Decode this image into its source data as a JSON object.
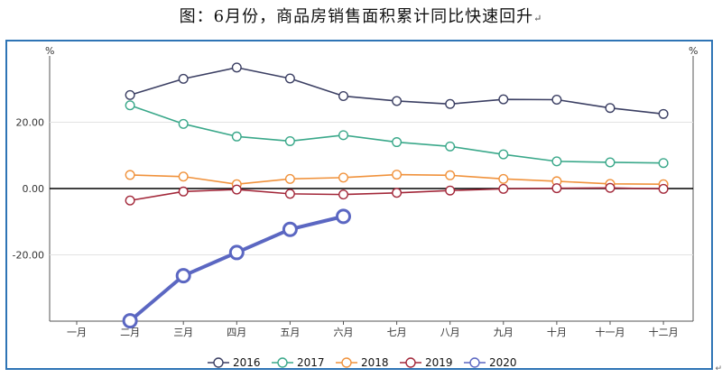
{
  "chart_data": {
    "type": "line",
    "title": "图：6月份，商品房销售面积累计同比快速回升",
    "title_suffix": "↵",
    "ylabel_left": "%",
    "ylabel_right": "%",
    "categories": [
      "一月",
      "二月",
      "三月",
      "四月",
      "五月",
      "六月",
      "七月",
      "八月",
      "九月",
      "十月",
      "十一月",
      "十二月"
    ],
    "yticks": [
      20,
      0,
      -20
    ],
    "ytick_labels": [
      "20.00",
      "0.00",
      "-20.00"
    ],
    "ylim": [
      -40,
      40
    ],
    "series": [
      {
        "name": "2016",
        "color": "#3b3f63",
        "values": [
          null,
          28.2,
          33.1,
          36.5,
          33.2,
          27.9,
          26.4,
          25.5,
          26.9,
          26.8,
          24.3,
          22.5
        ]
      },
      {
        "name": "2017",
        "color": "#3aa88a",
        "values": [
          null,
          25.1,
          19.5,
          15.7,
          14.3,
          16.1,
          14.0,
          12.7,
          10.3,
          8.2,
          7.9,
          7.7
        ]
      },
      {
        "name": "2018",
        "color": "#f0923c",
        "values": [
          null,
          4.1,
          3.6,
          1.3,
          2.9,
          3.3,
          4.2,
          4.0,
          2.9,
          2.2,
          1.4,
          1.3
        ]
      },
      {
        "name": "2019",
        "color": "#a3283a",
        "values": [
          null,
          -3.6,
          -0.9,
          -0.3,
          -1.6,
          -1.8,
          -1.3,
          -0.6,
          -0.1,
          0.1,
          0.2,
          -0.1
        ]
      },
      {
        "name": "2020",
        "color": "#5b67c2",
        "values": [
          null,
          -39.9,
          -26.3,
          -19.3,
          -12.3,
          -8.4,
          null,
          null,
          null,
          null,
          null,
          null
        ]
      }
    ]
  }
}
